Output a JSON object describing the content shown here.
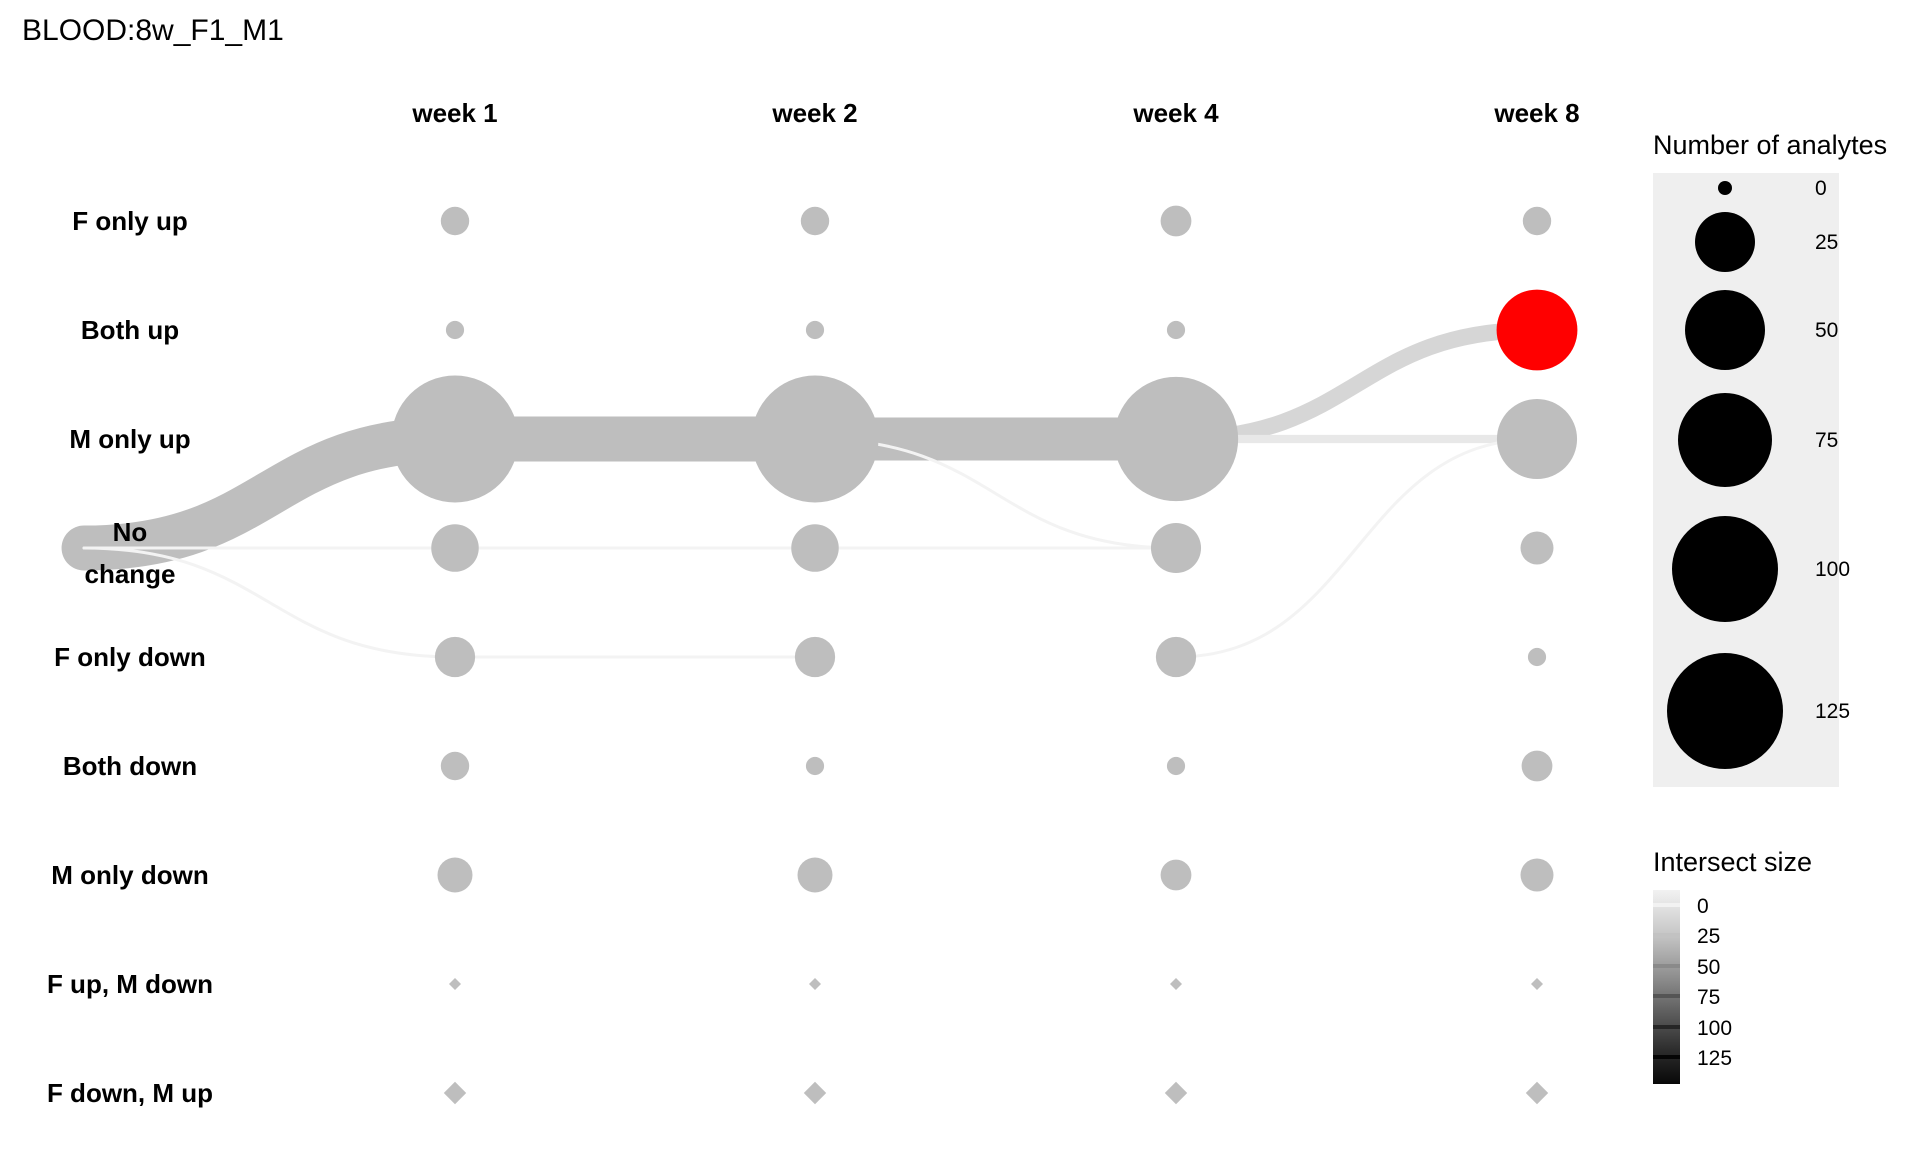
{
  "chart_data": {
    "type": "scatter",
    "title": "BLOOD:8w_F1_M1",
    "columns": [
      "week 1",
      "week 2",
      "week 4",
      "week 8"
    ],
    "rows": [
      "F only up",
      "Both up",
      "M only up",
      "No change",
      "F only down",
      "Both down",
      "M only down",
      "F up, M down",
      "F down, M up"
    ],
    "start_node": "No change",
    "node_sizes": [
      [
        4,
        4,
        5,
        4
      ],
      [
        1,
        1,
        1,
        51
      ],
      [
        136,
        136,
        130,
        50
      ],
      [
        15,
        15,
        17,
        6
      ],
      [
        10,
        10,
        10,
        1
      ],
      [
        4,
        1,
        1,
        5
      ],
      [
        7,
        7,
        5,
        6
      ],
      [
        0,
        0,
        0,
        0
      ],
      [
        3,
        3,
        3,
        3
      ]
    ],
    "node_shapes": [
      "circle",
      "circle",
      "circle",
      "circle",
      "circle",
      "circle",
      "circle",
      "diamond",
      "diamond"
    ],
    "highlight": {
      "row": "Both up",
      "column": "week 8",
      "color": "#ff0000"
    },
    "flows": [
      {
        "from_col": -1,
        "from": "No change",
        "to": "M only up",
        "to_col": 0,
        "size": 136
      },
      {
        "from_col": -1,
        "from": "No change",
        "to": "No change",
        "to_col": 0,
        "size": 2
      },
      {
        "from_col": -1,
        "from": "No change",
        "to": "F only down",
        "to_col": 0,
        "size": 1
      },
      {
        "from_col": 0,
        "from": "M only up",
        "to": "M only up",
        "to_col": 1,
        "size": 136
      },
      {
        "from_col": 0,
        "from": "No change",
        "to": "No change",
        "to_col": 1,
        "size": 1
      },
      {
        "from_col": 0,
        "from": "F only down",
        "to": "F only down",
        "to_col": 1,
        "size": 1
      },
      {
        "from_col": 1,
        "from": "M only up",
        "to": "M only up",
        "to_col": 2,
        "size": 130
      },
      {
        "from_col": 1,
        "from": "No change",
        "to": "No change",
        "to_col": 2,
        "size": 1
      },
      {
        "from_col": 1,
        "from": "M only up",
        "to": "No change",
        "to_col": 2,
        "size": 1
      },
      {
        "from_col": 2,
        "from": "M only up",
        "to": "Both up",
        "to_col": 3,
        "size": 50
      },
      {
        "from_col": 2,
        "from": "M only up",
        "to": "M only up",
        "to_col": 3,
        "size": 25
      },
      {
        "from_col": 2,
        "from": "F only down",
        "to": "M only up",
        "to_col": 3,
        "size": 1
      }
    ],
    "legend": {
      "size": {
        "title": "Number of analytes",
        "values": [
          0,
          25,
          50,
          75,
          100,
          125
        ]
      },
      "color": {
        "title": "Intersect size",
        "values": [
          0,
          25,
          50,
          75,
          100,
          125
        ]
      }
    },
    "colors": {
      "node": "#bebebe",
      "highlight": "#ff0000",
      "legend_bg": "#efefef",
      "legend_dot": "#000000"
    }
  }
}
